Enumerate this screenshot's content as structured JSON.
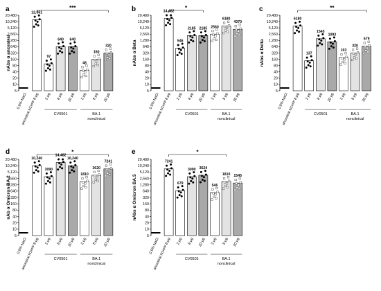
{
  "colors": {
    "bar_ancestral": "#ffffff",
    "bar_2ug": "#ffffff",
    "bar_8ug": "#e3e3e3",
    "bar_20ug": "#a9a9a9",
    "nacl_bar": "#000000",
    "stroke": "#000000"
  },
  "category_labels": [
    "0.9% NaCl",
    "ancestral N1mΨ 8 μg",
    "2 μg",
    "8 μg",
    "20 μg",
    "2 μg",
    "8 μg",
    "20 μg"
  ],
  "group_labels": {
    "cv0501": "CV0501",
    "ba1_line1": "BA.1",
    "ba1_line2": "nonclinical"
  },
  "y_ticks": [
    "5",
    "10",
    "20",
    "40",
    "80",
    "160",
    "320",
    "640",
    "1,280",
    "2,560",
    "5,120",
    "10,240",
    "20,480"
  ],
  "chart_data": [
    {
      "type": "bar",
      "panel": "a",
      "ylabel": "nAbs α ancestral",
      "yscale": "log2",
      "ylim": [
        5,
        20480
      ],
      "categories": [
        "0.9% NaCl",
        "ancestral N1mΨ 8 μg",
        "CV0501 2 μg",
        "CV0501 8 μg",
        "CV0501 20 μg",
        "BA.1 2 μg",
        "BA.1 8 μg",
        "BA.1 20 μg"
      ],
      "values": [
        5,
        12361,
        97,
        640,
        640,
        48,
        160,
        320
      ],
      "value_labels": [
        "",
        "12,361",
        "97",
        "640",
        "640",
        "48",
        "160",
        "320"
      ],
      "significance": "***",
      "significance_span": [
        "ancestral N1mΨ 8 μg",
        "BA.1 20 μg"
      ]
    },
    {
      "type": "bar",
      "panel": "b",
      "ylabel": "nAbs α Beta",
      "yscale": "log2",
      "ylim": [
        5,
        20480
      ],
      "categories": [
        "0.9% NaCl",
        "ancestral N1mΨ 8 μg",
        "CV0501 2 μg",
        "CV0501 8 μg",
        "CV0501 20 μg",
        "BA.1 2 μg",
        "BA.1 8 μg",
        "BA.1 20 μg"
      ],
      "values": [
        5,
        14482,
        546,
        2185,
        2185,
        2560,
        6180,
        4370
      ],
      "value_labels": [
        "",
        "14,482",
        "546",
        "2185",
        "2185",
        "2560",
        "6180",
        "4370"
      ],
      "significance": "*",
      "significance_span": [
        "ancestral N1mΨ 8 μg",
        "CV0501 20 μg"
      ]
    },
    {
      "type": "bar",
      "panel": "c",
      "ylabel": "nAbs α Delta",
      "yscale": "log2",
      "ylim": [
        5,
        20480
      ],
      "categories": [
        "0.9% NaCl",
        "ancestral N1mΨ 8 μg",
        "CV0501 2 μg",
        "CV0501 8 μg",
        "CV0501 20 μg",
        "BA.1 2 μg",
        "BA.1 8 μg",
        "BA.1 20 μg"
      ],
      "values": [
        5,
        6180,
        137,
        1545,
        1093,
        193,
        320,
        679
      ],
      "value_labels": [
        "",
        "6180",
        "137",
        "1545",
        "1093",
        "193",
        "320",
        "679"
      ],
      "significance": "**",
      "significance_span": [
        "ancestral N1mΨ 8 μg",
        "BA.1 20 μg"
      ]
    },
    {
      "type": "bar",
      "panel": "d",
      "ylabel": "nAb α Omicron BA.2",
      "yscale": "log2",
      "ylim": [
        5,
        20480
      ],
      "categories": [
        "0.9% NaCl",
        "ancestral N1mΨ 8 μg",
        "CV0501 2 μg",
        "CV0501 8 μg",
        "CV0501 20 μg",
        "BA.1 2 μg",
        "BA.1 8 μg",
        "BA.1 20 μg"
      ],
      "values": [
        5,
        10240,
        3090,
        14482,
        10240,
        1810,
        3620,
        7241
      ],
      "value_labels": [
        "",
        "10,240",
        "3090",
        "14,482",
        "10,240",
        "1810",
        "3620",
        "7241"
      ],
      "significance": "*",
      "significance_span": [
        "ancestral N1mΨ 8 μg",
        "BA.1 20 μg"
      ]
    },
    {
      "type": "bar",
      "panel": "e",
      "ylabel": "nAbs α Omicron BA.5",
      "yscale": "log2",
      "ylim": [
        5,
        20480
      ],
      "categories": [
        "0.9% NaCl",
        "ancestral N1mΨ 8 μg",
        "CV0501 2 μg",
        "CV0501 8 μg",
        "CV0501 20 μg",
        "BA.1 2 μg",
        "BA.1 8 μg",
        "BA.1 20 μg"
      ],
      "values": [
        5,
        7241,
        679,
        3090,
        3624,
        546,
        1810,
        1545
      ],
      "value_labels": [
        "",
        "7241",
        "679",
        "3090",
        "3624",
        "546",
        "1810",
        "1545"
      ],
      "significance": "*",
      "significance_span": [
        "ancestral N1mΨ 8 μg",
        "BA.1 8 μg"
      ]
    }
  ]
}
